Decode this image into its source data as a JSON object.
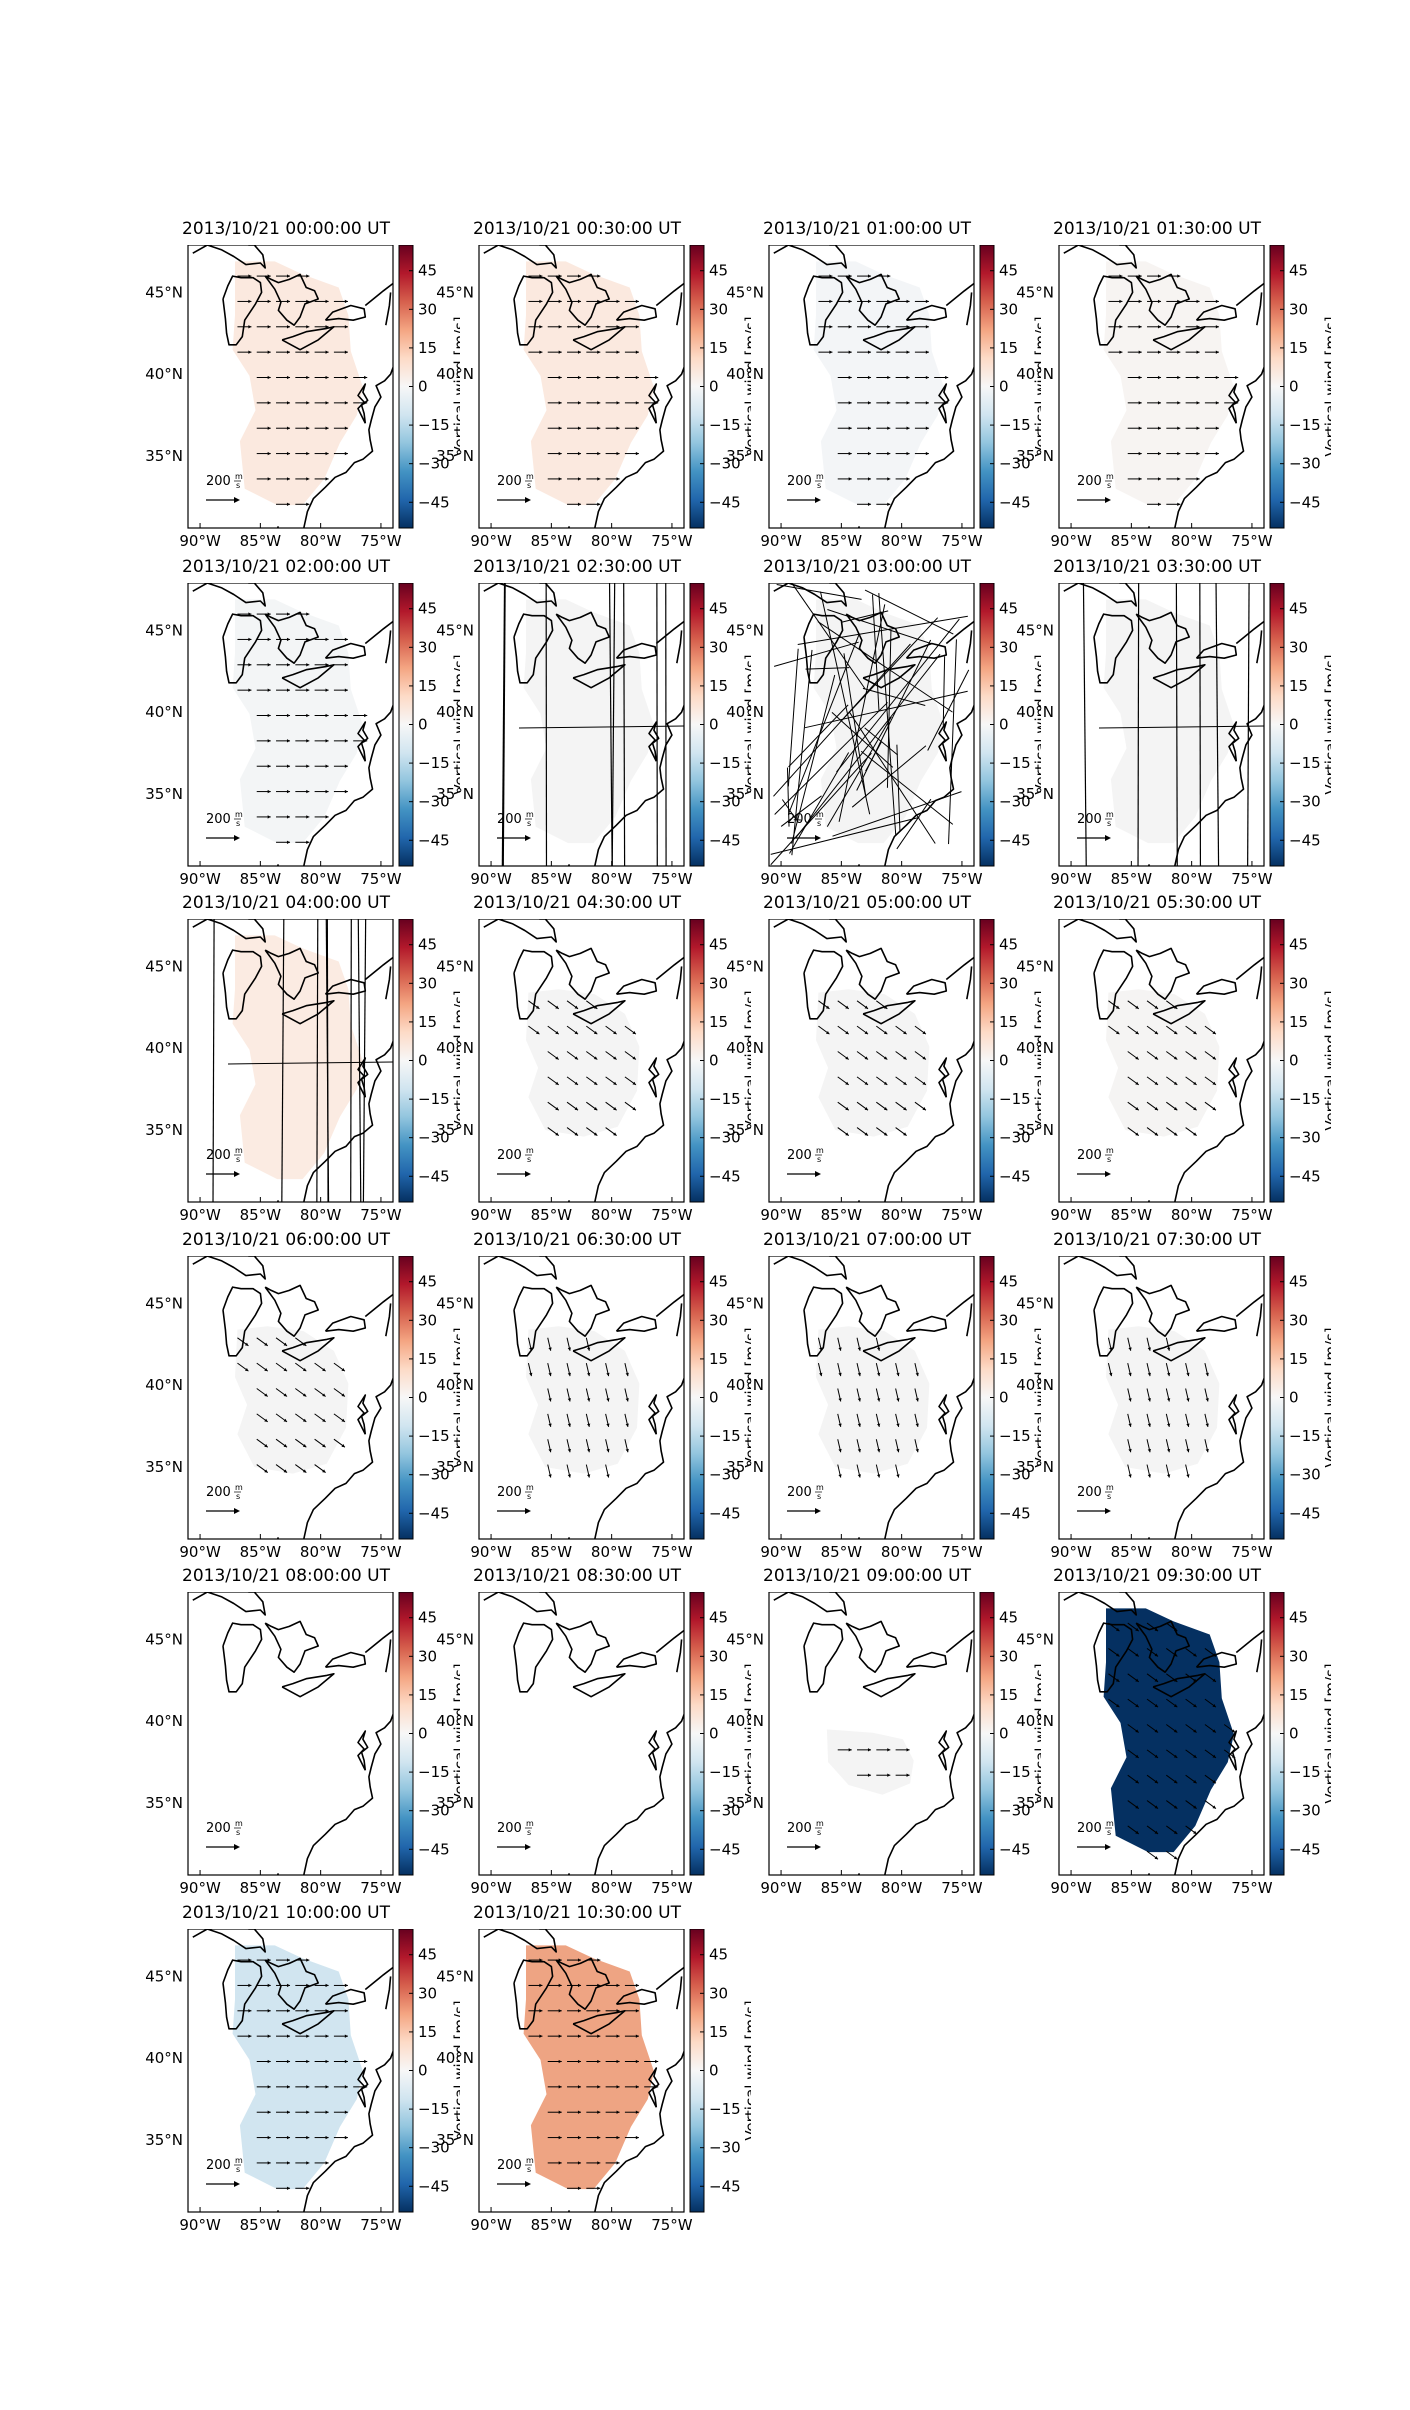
{
  "figure": {
    "lon_ticks": [
      "90°W",
      "85°W",
      "80°W",
      "75°W"
    ],
    "lat_ticks": [
      "45°N",
      "40°N",
      "35°N"
    ],
    "colorbar": {
      "label": "Vertical wind [m/s]",
      "ticks": [
        "45",
        "30",
        "15",
        "0",
        "−15",
        "−30",
        "−45"
      ],
      "range": [
        -55,
        55
      ],
      "colormap": "RdBu_r",
      "colors": [
        "#053061",
        "#2166ac",
        "#4393c3",
        "#92c5de",
        "#d1e5f0",
        "#f7f7f7",
        "#fddbc7",
        "#f4a582",
        "#d6604d",
        "#b2182b",
        "#67001f"
      ]
    },
    "reference_vector": {
      "value": "200",
      "unit_numerator": "m",
      "unit_denominator": "s"
    },
    "panels": [
      {
        "title": "2013/10/21 00:00:00 UT",
        "fill": "#fbe9df",
        "region": "large",
        "vectors": "east",
        "lines": "none"
      },
      {
        "title": "2013/10/21 00:30:00 UT",
        "fill": "#fbe9df",
        "region": "large",
        "vectors": "east",
        "lines": "none"
      },
      {
        "title": "2013/10/21 01:00:00 UT",
        "fill": "#f3f5f7",
        "region": "large",
        "vectors": "east",
        "lines": "none"
      },
      {
        "title": "2013/10/21 01:30:00 UT",
        "fill": "#f7f4f2",
        "region": "large",
        "vectors": "east",
        "lines": "none"
      },
      {
        "title": "2013/10/21 02:00:00 UT",
        "fill": "#f3f5f6",
        "region": "large",
        "vectors": "east",
        "lines": "none"
      },
      {
        "title": "2013/10/21 02:30:00 UT",
        "fill": "#f4f4f4",
        "region": "large",
        "vectors": "none",
        "lines": "vertical"
      },
      {
        "title": "2013/10/21 03:00:00 UT",
        "fill": "#f4f4f4",
        "region": "large",
        "vectors": "none",
        "lines": "chaos"
      },
      {
        "title": "2013/10/21 03:30:00 UT",
        "fill": "#f4f4f4",
        "region": "large",
        "vectors": "none",
        "lines": "vertical"
      },
      {
        "title": "2013/10/21 04:00:00 UT",
        "fill": "#fbebe2",
        "region": "large",
        "vectors": "none",
        "lines": "vertical"
      },
      {
        "title": "2013/10/21 04:30:00 UT",
        "fill": "#f4f4f4",
        "region": "small",
        "vectors": "southeast",
        "lines": "none"
      },
      {
        "title": "2013/10/21 05:00:00 UT",
        "fill": "#f4f4f4",
        "region": "small",
        "vectors": "southeast",
        "lines": "none"
      },
      {
        "title": "2013/10/21 05:30:00 UT",
        "fill": "#f5f4f3",
        "region": "small",
        "vectors": "southeast",
        "lines": "none"
      },
      {
        "title": "2013/10/21 06:00:00 UT",
        "fill": "#f4f4f4",
        "region": "small",
        "vectors": "southeast",
        "lines": "none"
      },
      {
        "title": "2013/10/21 06:30:00 UT",
        "fill": "#f4f4f4",
        "region": "small",
        "vectors": "south",
        "lines": "none"
      },
      {
        "title": "2013/10/21 07:00:00 UT",
        "fill": "#f4f4f4",
        "region": "small",
        "vectors": "south",
        "lines": "none"
      },
      {
        "title": "2013/10/21 07:30:00 UT",
        "fill": "#f4f4f4",
        "region": "small",
        "vectors": "south",
        "lines": "none"
      },
      {
        "title": "2013/10/21 08:00:00 UT",
        "fill": "none",
        "region": "none",
        "vectors": "none",
        "lines": "none"
      },
      {
        "title": "2013/10/21 08:30:00 UT",
        "fill": "none",
        "region": "none",
        "vectors": "none",
        "lines": "none"
      },
      {
        "title": "2013/10/21 09:00:00 UT",
        "fill": "#f4f4f4",
        "region": "tiny",
        "vectors": "east",
        "lines": "none"
      },
      {
        "title": "2013/10/21 09:30:00 UT",
        "fill": "#053061",
        "region": "large",
        "vectors": "southeast",
        "lines": "none"
      },
      {
        "title": "2013/10/21 10:00:00 UT",
        "fill": "#d1e5f0",
        "region": "large",
        "vectors": "east",
        "lines": "none"
      },
      {
        "title": "2013/10/21 10:30:00 UT",
        "fill": "#eea483",
        "region": "large",
        "vectors": "east",
        "lines": "none"
      }
    ]
  }
}
